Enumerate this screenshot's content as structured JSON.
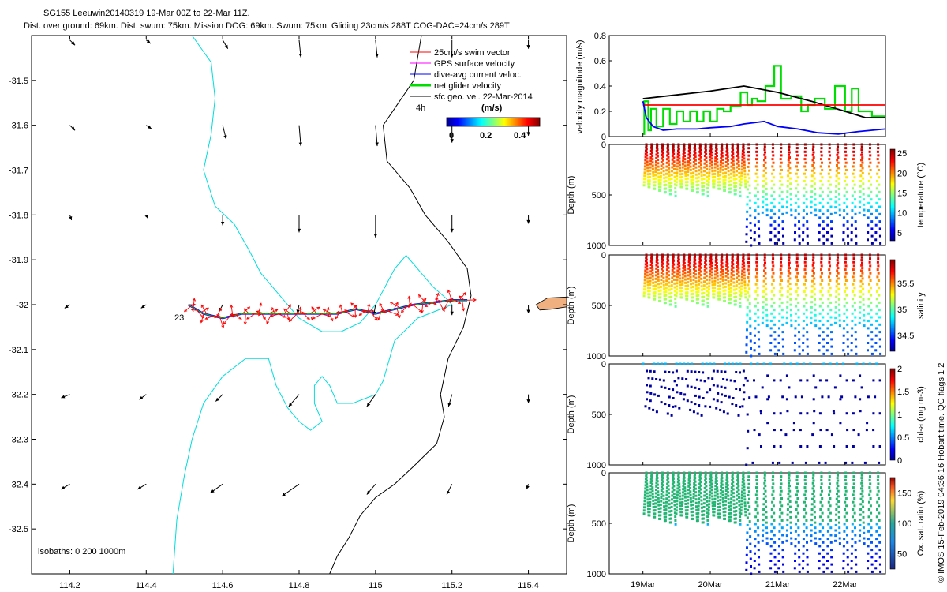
{
  "title": {
    "line1": "SG155 Leeuwin20140319 19-Mar 00Z to 22-Mar 11Z.",
    "line2": "Dist. over ground: 69km. Dist. swum: 75km. Mission DOG: 69km. Swum: 75km. Gliding 23cm/s 288T COG-DAC=24cm/s 289T"
  },
  "footer_note": "© IMOS 15-Feb-2019 04:36:16 Hobart time. QC flags 1  2",
  "colors": {
    "swim": "#ff0000",
    "gps": "#ff00ff",
    "dac": "#0000ff",
    "net": "#00dd00",
    "sfc": "#000000",
    "isobath200": "#00dddd",
    "isobath1000": "#000000",
    "land": "#f0b080"
  },
  "chart_data": [
    {
      "type": "scatter",
      "subtype": "map",
      "xlim": [
        114.1,
        115.5
      ],
      "ylim": [
        -32.6,
        -31.4
      ],
      "x_ticks": [
        114.2,
        114.4,
        114.6,
        114.8,
        115,
        115.2,
        115.4
      ],
      "y_ticks": [
        -31.5,
        -31.6,
        -31.7,
        -31.8,
        -31.9,
        -32,
        -32.1,
        -32.2,
        -32.3,
        -32.4,
        -32.5
      ],
      "x_tick_labels": [
        "114.2",
        "114.4",
        "114.6",
        "114.8",
        "115",
        "115.2",
        "115.4"
      ],
      "y_tick_labels": [
        "-31.5",
        "-31.6",
        "-31.7",
        "-31.8",
        "-31.9",
        "-32",
        "-32.1",
        "-32.2",
        "-32.3",
        "-32.4",
        "-32.5"
      ],
      "legend": {
        "placement": "top-right",
        "entries": [
          "25cm/s swim vector",
          "GPS surface velocity",
          "dive-avg current veloc.",
          "net glider velocity",
          "sfc geo. vel. 22-Mar-2014"
        ]
      },
      "time_label": "4h",
      "colorbar": {
        "label": "(m/s)",
        "ticks": [
          "0",
          "0.2",
          "0.4"
        ],
        "range": [
          0,
          0.5
        ]
      },
      "start_label": "23",
      "isobaths_label": "isobaths: 0   200  1000m",
      "glider_track": [
        [
          114.51,
          -32.0
        ],
        [
          114.55,
          -32.02
        ],
        [
          114.6,
          -32.03
        ],
        [
          114.65,
          -32.02
        ],
        [
          114.7,
          -32.02
        ],
        [
          114.75,
          -32.02
        ],
        [
          114.8,
          -32.02
        ],
        [
          114.85,
          -32.02
        ],
        [
          114.9,
          -32.02
        ],
        [
          114.95,
          -32.01
        ],
        [
          115.0,
          -32.02
        ],
        [
          115.05,
          -32.01
        ],
        [
          115.1,
          -32.0
        ],
        [
          115.15,
          -31.995
        ],
        [
          115.2,
          -31.99
        ],
        [
          115.24,
          -31.99
        ]
      ],
      "isobath_200": [
        [
          114.52,
          -31.4
        ],
        [
          114.57,
          -31.46
        ],
        [
          114.58,
          -31.54
        ],
        [
          114.57,
          -31.62
        ],
        [
          114.55,
          -31.7
        ],
        [
          114.58,
          -31.78
        ],
        [
          114.63,
          -31.82
        ],
        [
          114.67,
          -31.88
        ],
        [
          114.7,
          -31.93
        ],
        [
          114.76,
          -31.99
        ],
        [
          114.8,
          -32.03
        ],
        [
          114.86,
          -32.06
        ],
        [
          114.91,
          -32.06
        ],
        [
          114.96,
          -32.04
        ],
        [
          115.0,
          -32.0
        ],
        [
          115.05,
          -31.92
        ],
        [
          115.08,
          -31.89
        ],
        [
          115.12,
          -31.93
        ],
        [
          115.15,
          -31.96
        ],
        [
          115.19,
          -31.99
        ],
        [
          115.2,
          -32.0
        ],
        [
          115.11,
          -32.03
        ],
        [
          115.05,
          -32.08
        ],
        [
          115.02,
          -32.17
        ],
        [
          115.0,
          -32.2
        ],
        [
          114.97,
          -32.21
        ],
        [
          114.94,
          -32.22
        ],
        [
          114.9,
          -32.22
        ],
        [
          114.88,
          -32.18
        ],
        [
          114.86,
          -32.16
        ],
        [
          114.84,
          -32.18
        ],
        [
          114.84,
          -32.22
        ],
        [
          114.86,
          -32.26
        ],
        [
          114.83,
          -32.28
        ],
        [
          114.8,
          -32.26
        ],
        [
          114.77,
          -32.23
        ],
        [
          114.74,
          -32.18
        ],
        [
          114.72,
          -32.12
        ],
        [
          114.66,
          -32.12
        ],
        [
          114.6,
          -32.16
        ],
        [
          114.55,
          -32.22
        ],
        [
          114.52,
          -32.3
        ],
        [
          114.5,
          -32.38
        ],
        [
          114.48,
          -32.48
        ],
        [
          114.47,
          -32.6
        ]
      ],
      "isobath_1000": [
        [
          115.12,
          -31.4
        ],
        [
          115.11,
          -31.45
        ],
        [
          115.1,
          -31.5
        ],
        [
          115.06,
          -31.55
        ],
        [
          115.02,
          -31.6
        ],
        [
          115.03,
          -31.68
        ],
        [
          115.09,
          -31.74
        ],
        [
          115.13,
          -31.8
        ],
        [
          115.19,
          -31.86
        ],
        [
          115.24,
          -31.92
        ],
        [
          115.25,
          -31.98
        ],
        [
          115.23,
          -32.05
        ],
        [
          115.19,
          -32.12
        ],
        [
          115.17,
          -32.2
        ],
        [
          115.18,
          -32.25
        ],
        [
          115.16,
          -32.31
        ],
        [
          115.1,
          -32.36
        ],
        [
          115.05,
          -32.4
        ],
        [
          115.0,
          -32.43
        ],
        [
          114.96,
          -32.47
        ],
        [
          114.93,
          -32.52
        ],
        [
          114.9,
          -32.56
        ],
        [
          114.88,
          -32.6
        ]
      ],
      "land": [
        [
          115.42,
          -32.0
        ],
        [
          115.45,
          -31.985
        ],
        [
          115.5,
          -31.983
        ],
        [
          115.5,
          -32.005
        ],
        [
          115.46,
          -32.01
        ],
        [
          115.43,
          -32.012
        ]
      ],
      "sfc_vectors": [
        {
          "x": 114.2,
          "y": -31.41,
          "u": 0.3,
          "v": -0.3
        },
        {
          "x": 114.4,
          "y": -31.41,
          "u": 0.25,
          "v": -0.2
        },
        {
          "x": 114.6,
          "y": -31.41,
          "u": 0.3,
          "v": -0.5
        },
        {
          "x": 114.8,
          "y": -31.41,
          "u": 0.1,
          "v": -1.0
        },
        {
          "x": 115.0,
          "y": -31.41,
          "u": 0.1,
          "v": -1.0
        },
        {
          "x": 115.2,
          "y": -31.41,
          "u": 0.0,
          "v": -1.0
        },
        {
          "x": 115.4,
          "y": -31.41,
          "u": 0.0,
          "v": -0.5
        },
        {
          "x": 114.2,
          "y": -31.6,
          "u": 0.3,
          "v": -0.3
        },
        {
          "x": 114.4,
          "y": -31.6,
          "u": 0.3,
          "v": -0.2
        },
        {
          "x": 114.6,
          "y": -31.6,
          "u": 0.2,
          "v": -0.8
        },
        {
          "x": 114.8,
          "y": -31.6,
          "u": 0.1,
          "v": -1.2
        },
        {
          "x": 115.0,
          "y": -31.6,
          "u": 0.1,
          "v": -1.2
        },
        {
          "x": 115.2,
          "y": -31.6,
          "u": 0.0,
          "v": -1.0
        },
        {
          "x": 115.4,
          "y": -31.6,
          "u": 0.0,
          "v": -0.6
        },
        {
          "x": 114.2,
          "y": -31.8,
          "u": 0.1,
          "v": -0.3
        },
        {
          "x": 114.4,
          "y": -31.8,
          "u": 0.1,
          "v": -0.2
        },
        {
          "x": 114.6,
          "y": -31.8,
          "u": 0.0,
          "v": -0.6
        },
        {
          "x": 114.8,
          "y": -31.8,
          "u": 0.0,
          "v": -1.0
        },
        {
          "x": 115.0,
          "y": -31.8,
          "u": 0.0,
          "v": -1.3
        },
        {
          "x": 115.2,
          "y": -31.8,
          "u": 0.0,
          "v": -1.0
        },
        {
          "x": 115.4,
          "y": -31.8,
          "u": 0.0,
          "v": -0.5
        },
        {
          "x": 114.2,
          "y": -32.0,
          "u": -0.3,
          "v": -0.2
        },
        {
          "x": 114.4,
          "y": -32.0,
          "u": -0.3,
          "v": -0.2
        },
        {
          "x": 114.6,
          "y": -32.0,
          "u": -0.2,
          "v": -0.4
        },
        {
          "x": 114.8,
          "y": -32.0,
          "u": -0.1,
          "v": -0.5
        },
        {
          "x": 115.0,
          "y": -32.0,
          "u": -0.1,
          "v": -0.6
        },
        {
          "x": 115.2,
          "y": -32.0,
          "u": 0.0,
          "v": -0.6
        },
        {
          "x": 115.4,
          "y": -32.0,
          "u": 0.0,
          "v": -0.5
        },
        {
          "x": 114.2,
          "y": -32.2,
          "u": -0.5,
          "v": -0.2
        },
        {
          "x": 114.4,
          "y": -32.2,
          "u": -0.4,
          "v": -0.3
        },
        {
          "x": 114.6,
          "y": -32.2,
          "u": -0.4,
          "v": -0.4
        },
        {
          "x": 114.8,
          "y": -32.2,
          "u": -0.6,
          "v": -0.7
        },
        {
          "x": 115.0,
          "y": -32.2,
          "u": -0.5,
          "v": -0.7
        },
        {
          "x": 115.2,
          "y": -32.2,
          "u": -0.2,
          "v": -0.7
        },
        {
          "x": 115.4,
          "y": -32.2,
          "u": 0.0,
          "v": -0.5
        },
        {
          "x": 114.2,
          "y": -32.4,
          "u": -0.5,
          "v": -0.3
        },
        {
          "x": 114.4,
          "y": -32.4,
          "u": -0.5,
          "v": -0.3
        },
        {
          "x": 114.6,
          "y": -32.4,
          "u": -0.7,
          "v": -0.5
        },
        {
          "x": 114.8,
          "y": -32.4,
          "u": -1.0,
          "v": -0.7
        },
        {
          "x": 115.0,
          "y": -32.4,
          "u": -0.5,
          "v": -0.6
        },
        {
          "x": 115.2,
          "y": -32.4,
          "u": -0.3,
          "v": -0.6
        },
        {
          "x": 115.4,
          "y": -32.4,
          "u": -0.1,
          "v": -0.3
        }
      ]
    },
    {
      "type": "line",
      "ylabel": "velocity magnitude (m/s)",
      "ylim": [
        0,
        0.8
      ],
      "y_ticks": [
        "0",
        "0.2",
        "0.4",
        "0.6",
        "0.8"
      ],
      "xlim": [
        18.5,
        22.6
      ],
      "series": [
        {
          "color": "#00dd00",
          "x": [
            19.0,
            19.02,
            19.02,
            19.08,
            19.08,
            19.12,
            19.12,
            19.2,
            19.2,
            19.3,
            19.3,
            19.4,
            19.4,
            19.5,
            19.5,
            19.6,
            19.6,
            19.7,
            19.7,
            19.8,
            19.8,
            19.9,
            19.9,
            20.0,
            20.0,
            20.1,
            20.1,
            20.2,
            20.2,
            20.3,
            20.3,
            20.45,
            20.45,
            20.55,
            20.55,
            20.62,
            20.62,
            20.7,
            20.7,
            20.82,
            20.82,
            20.95,
            20.95,
            21.05,
            21.05,
            21.2,
            21.2,
            21.35,
            21.35,
            21.45,
            21.45,
            21.55,
            21.55,
            21.7,
            21.7,
            21.85,
            21.85,
            22.0,
            22.0,
            22.1,
            22.1,
            22.2,
            22.2,
            22.4,
            22.4,
            22.6
          ],
          "y": [
            0.02,
            0.02,
            0.28,
            0.28,
            0.05,
            0.05,
            0.22,
            0.22,
            0.08,
            0.08,
            0.22,
            0.22,
            0.1,
            0.1,
            0.2,
            0.2,
            0.12,
            0.12,
            0.2,
            0.2,
            0.12,
            0.12,
            0.2,
            0.2,
            0.12,
            0.12,
            0.22,
            0.22,
            0.2,
            0.2,
            0.24,
            0.24,
            0.35,
            0.35,
            0.25,
            0.25,
            0.3,
            0.3,
            0.28,
            0.28,
            0.4,
            0.4,
            0.56,
            0.56,
            0.3,
            0.3,
            0.32,
            0.32,
            0.2,
            0.2,
            0.25,
            0.25,
            0.3,
            0.3,
            0.22,
            0.22,
            0.4,
            0.4,
            0.2,
            0.2,
            0.38,
            0.38,
            0.2,
            0.2,
            0.16,
            0.16
          ]
        },
        {
          "color": "#000000",
          "x": [
            19.0,
            19.5,
            20.0,
            20.5,
            21.0,
            21.5,
            22.0,
            22.3,
            22.6
          ],
          "y": [
            0.3,
            0.33,
            0.36,
            0.4,
            0.35,
            0.28,
            0.2,
            0.15,
            0.15
          ]
        },
        {
          "color": "#ff0000",
          "x": [
            19.0,
            22.6
          ],
          "y": [
            0.25,
            0.25
          ]
        },
        {
          "color": "#0000ff",
          "x": [
            19.0,
            19.05,
            19.15,
            19.3,
            19.5,
            19.8,
            20.0,
            20.3,
            20.5,
            20.8,
            21.0,
            21.3,
            21.6,
            21.9,
            22.2,
            22.6
          ],
          "y": [
            0.28,
            0.15,
            0.08,
            0.05,
            0.06,
            0.06,
            0.07,
            0.08,
            0.1,
            0.12,
            0.08,
            0.06,
            0.03,
            0.02,
            0.04,
            0.06
          ]
        }
      ]
    },
    {
      "type": "scatter",
      "subtype": "profile",
      "ylabel": "Depth (m)",
      "ylim": [
        1000,
        0
      ],
      "y_ticks": [
        "0",
        "500",
        "1000"
      ],
      "colorbar": {
        "label": "temperature (°C)",
        "ticks": [
          "5",
          "10",
          "15",
          "20",
          "25"
        ],
        "range": [
          3,
          26
        ]
      }
    },
    {
      "type": "scatter",
      "subtype": "profile",
      "ylabel": "Depth (m)",
      "ylim": [
        1000,
        0
      ],
      "y_ticks": [
        "0",
        "500",
        "1000"
      ],
      "colorbar": {
        "label": "salinity",
        "ticks": [
          "34.5",
          "35",
          "35.5"
        ],
        "range": [
          34.2,
          35.95
        ]
      }
    },
    {
      "type": "scatter",
      "subtype": "profile",
      "ylabel": "Depth (m)",
      "ylim": [
        1000,
        0
      ],
      "y_ticks": [
        "0",
        "500",
        "1000"
      ],
      "colorbar": {
        "label": "chl-a (mg m-3)",
        "ticks": [
          "0",
          "0.5",
          "1",
          "1.5",
          "2"
        ],
        "range": [
          0,
          2
        ]
      }
    },
    {
      "type": "scatter",
      "subtype": "profile",
      "ylabel": "Depth (m)",
      "ylim": [
        1000,
        0
      ],
      "y_ticks": [
        "0",
        "500",
        "1000"
      ],
      "x_tick_labels": [
        "19Mar",
        "20Mar",
        "21Mar",
        "22Mar"
      ],
      "x_ticks": [
        19,
        20,
        21,
        22
      ],
      "colorbar": {
        "label": "Ox. sat. ratio (%)",
        "ticks": [
          "50",
          "100",
          "150"
        ],
        "range": [
          25,
          175
        ]
      }
    }
  ]
}
